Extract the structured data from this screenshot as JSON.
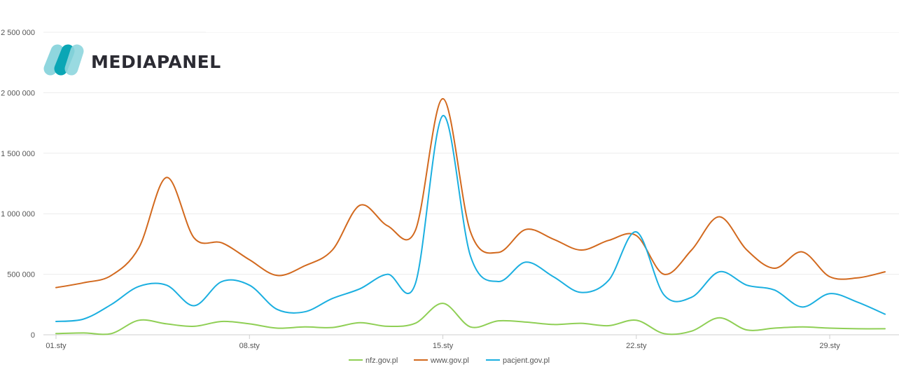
{
  "logo": {
    "text": "MEDIAPANEL",
    "colors": {
      "light": "#8fd6de",
      "dark": "#0aa6b5"
    }
  },
  "chart_data": {
    "type": "line",
    "title": "",
    "xlabel": "",
    "ylabel": "",
    "ylim": [
      0,
      2500000
    ],
    "yticks": [
      0,
      500000,
      1000000,
      1500000,
      2000000,
      2500000
    ],
    "ytick_labels": [
      "0",
      "500 000",
      "1 000 000",
      "1 500 000",
      "2 000 000",
      "2 500 000"
    ],
    "xticks": [
      1,
      8,
      15,
      22,
      29
    ],
    "xtick_labels": [
      "01.sty",
      "08.sty",
      "15.sty",
      "22.sty",
      "29.sty"
    ],
    "x": [
      1,
      2,
      3,
      4,
      5,
      6,
      7,
      8,
      9,
      10,
      11,
      12,
      13,
      14,
      15,
      16,
      17,
      18,
      19,
      20,
      21,
      22,
      23,
      24,
      25,
      26,
      27,
      28,
      29,
      30,
      31
    ],
    "grid": true,
    "legend": "bottom",
    "series": [
      {
        "name": "nfz.gov.pl",
        "color": "#8fcf55",
        "values": [
          10000,
          15000,
          10000,
          120000,
          90000,
          70000,
          110000,
          90000,
          55000,
          65000,
          60000,
          100000,
          70000,
          95000,
          260000,
          65000,
          115000,
          105000,
          85000,
          95000,
          75000,
          120000,
          10000,
          30000,
          140000,
          40000,
          55000,
          65000,
          55000,
          50000,
          50000
        ]
      },
      {
        "name": "www.gov.pl",
        "color": "#d2691e",
        "values": [
          390000,
          430000,
          490000,
          720000,
          1300000,
          800000,
          760000,
          620000,
          490000,
          570000,
          700000,
          1070000,
          900000,
          860000,
          1950000,
          850000,
          680000,
          870000,
          790000,
          700000,
          780000,
          820000,
          500000,
          700000,
          975000,
          700000,
          550000,
          685000,
          480000,
          470000,
          520000
        ]
      },
      {
        "name": "pacjent.gov.pl",
        "color": "#1bafe0",
        "values": [
          110000,
          130000,
          250000,
          400000,
          410000,
          240000,
          440000,
          410000,
          210000,
          190000,
          300000,
          380000,
          500000,
          420000,
          1810000,
          650000,
          440000,
          600000,
          480000,
          350000,
          450000,
          850000,
          330000,
          310000,
          520000,
          410000,
          370000,
          230000,
          340000,
          270000,
          170000
        ]
      }
    ]
  }
}
